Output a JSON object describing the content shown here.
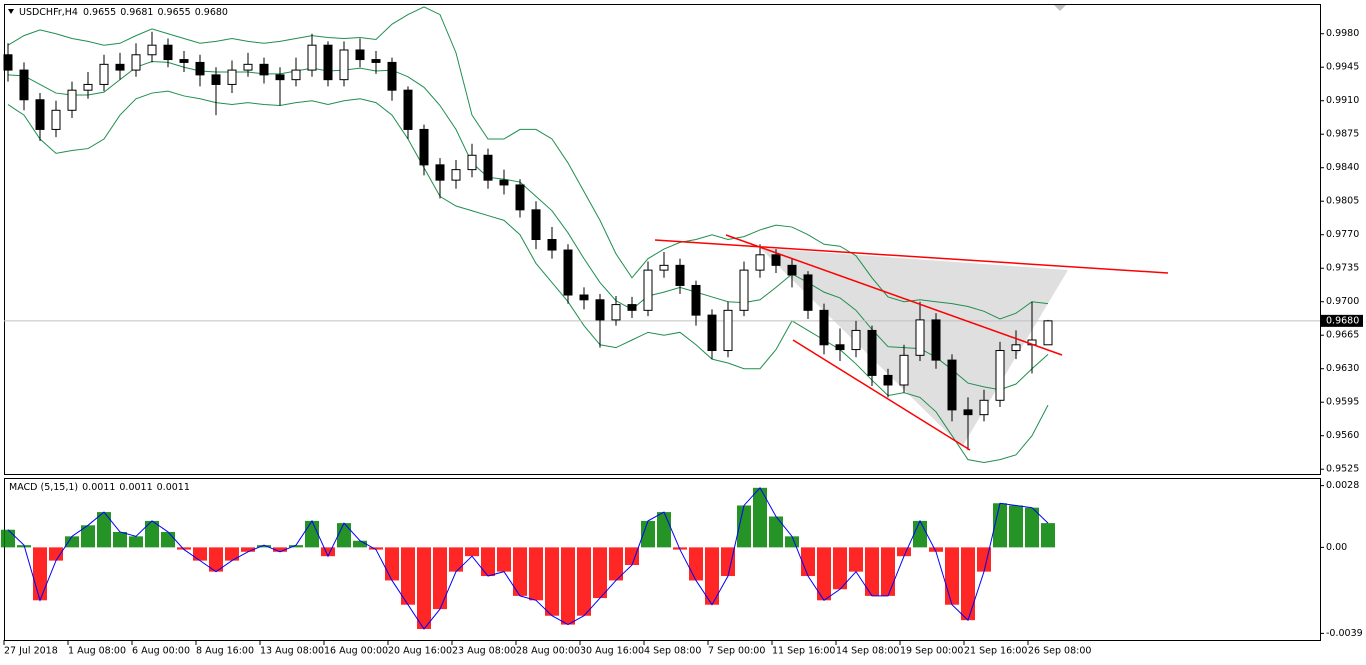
{
  "chart_data": [
    {
      "type": "candlestick",
      "title": "USDCHFr,H4",
      "header_values": [
        0.9655,
        0.9681,
        0.9655,
        0.968
      ],
      "header_value_labels": [
        "0.9655",
        "0.9681",
        "0.9655",
        "0.9680"
      ],
      "categories": [
        "27 Jul 2018",
        null,
        null,
        null,
        "1 Aug 08:00",
        null,
        null,
        null,
        "6 Aug 00:00",
        null,
        null,
        null,
        "8 Aug 16:00",
        null,
        null,
        null,
        "13 Aug 08:00",
        null,
        null,
        null,
        "16 Aug 00:00",
        null,
        null,
        null,
        "20 Aug 16:00",
        null,
        null,
        null,
        "23 Aug 08:00",
        null,
        null,
        null,
        "28 Aug 00:00",
        null,
        null,
        null,
        "30 Aug 16:00",
        null,
        null,
        null,
        "4 Sep 08:00",
        null,
        null,
        null,
        "7 Sep 00:00",
        null,
        null,
        null,
        "11 Sep 16:00",
        null,
        null,
        null,
        "14 Sep 08:00",
        null,
        null,
        null,
        "19 Sep 00:00",
        null,
        null,
        null,
        "21 Sep 16:00",
        null,
        null,
        null,
        "26 Sep 08:00",
        null
      ],
      "open": [
        0.9958,
        0.9942,
        0.9911,
        0.988,
        0.99,
        0.9921,
        0.9927,
        0.9948,
        0.9942,
        0.9958,
        0.9968,
        0.9953,
        0.995,
        0.9937,
        0.9927,
        0.9942,
        0.9948,
        0.9937,
        0.9932,
        0.9942,
        0.9968,
        0.9932,
        0.9963,
        0.9953,
        0.995,
        0.9921,
        0.988,
        0.9843,
        0.9827,
        0.9838,
        0.9853,
        0.9827,
        0.9822,
        0.9796,
        0.9765,
        0.9754,
        0.9707,
        0.9702,
        0.9681,
        0.9697,
        0.9691,
        0.9733,
        0.9738,
        0.9717,
        0.9686,
        0.9649,
        0.9691,
        0.9733,
        0.9749,
        0.9738,
        0.9728,
        0.9691,
        0.9655,
        0.965,
        0.967,
        0.9623,
        0.9613,
        0.9644,
        0.9681,
        0.9639,
        0.9587,
        0.9582,
        0.9597,
        0.9649,
        0.9655,
        0.9655
      ],
      "high": [
        0.997,
        0.995,
        0.9918,
        0.991,
        0.993,
        0.994,
        0.9958,
        0.996,
        0.997,
        0.9982,
        0.9975,
        0.9962,
        0.9958,
        0.9945,
        0.9952,
        0.996,
        0.9955,
        0.9945,
        0.9955,
        0.998,
        0.9972,
        0.9972,
        0.9975,
        0.9962,
        0.9955,
        0.9925,
        0.9885,
        0.985,
        0.9848,
        0.9865,
        0.986,
        0.9838,
        0.9828,
        0.9805,
        0.9778,
        0.976,
        0.9715,
        0.9708,
        0.9706,
        0.9705,
        0.9742,
        0.9752,
        0.9745,
        0.9722,
        0.9692,
        0.97,
        0.9742,
        0.976,
        0.9755,
        0.9745,
        0.9732,
        0.9698,
        0.9672,
        0.968,
        0.9675,
        0.963,
        0.9655,
        0.97,
        0.9688,
        0.9645,
        0.96,
        0.9608,
        0.9658,
        0.967,
        0.97,
        0.9681
      ],
      "low": [
        0.993,
        0.99,
        0.9868,
        0.9872,
        0.9892,
        0.9912,
        0.992,
        0.9932,
        0.9935,
        0.995,
        0.9945,
        0.994,
        0.9925,
        0.9895,
        0.9918,
        0.9935,
        0.9928,
        0.9905,
        0.9925,
        0.9935,
        0.9925,
        0.9925,
        0.9945,
        0.9938,
        0.991,
        0.987,
        0.9832,
        0.9808,
        0.9818,
        0.983,
        0.9818,
        0.9812,
        0.9788,
        0.9755,
        0.9745,
        0.9698,
        0.9692,
        0.9652,
        0.9675,
        0.9683,
        0.9685,
        0.9725,
        0.9708,
        0.9675,
        0.964,
        0.9642,
        0.9685,
        0.9725,
        0.973,
        0.9715,
        0.9682,
        0.9645,
        0.9638,
        0.9642,
        0.9612,
        0.96,
        0.9605,
        0.9638,
        0.963,
        0.9575,
        0.9545,
        0.9575,
        0.959,
        0.964,
        0.9625,
        0.9655
      ],
      "close": [
        0.9942,
        0.9911,
        0.988,
        0.99,
        0.9921,
        0.9927,
        0.9948,
        0.9942,
        0.9958,
        0.9968,
        0.9953,
        0.995,
        0.9937,
        0.9927,
        0.9942,
        0.9948,
        0.9937,
        0.9932,
        0.9942,
        0.9968,
        0.9932,
        0.9963,
        0.9953,
        0.995,
        0.9921,
        0.988,
        0.9843,
        0.9827,
        0.9838,
        0.9853,
        0.9827,
        0.9822,
        0.9796,
        0.9765,
        0.9754,
        0.9707,
        0.9702,
        0.9681,
        0.9697,
        0.9691,
        0.9733,
        0.9738,
        0.9717,
        0.9686,
        0.9649,
        0.9691,
        0.9733,
        0.9749,
        0.9738,
        0.9728,
        0.9691,
        0.9655,
        0.965,
        0.967,
        0.9623,
        0.9613,
        0.9644,
        0.9681,
        0.9639,
        0.9587,
        0.9582,
        0.9597,
        0.9649,
        0.9655,
        0.966,
        0.968
      ],
      "up_color": "#ffffff",
      "down_color": "#000000",
      "outline_color": "#000000",
      "series": [
        {
          "color": "#1f8f4e",
          "values": [
            0.9968,
            0.9978,
            0.9984,
            0.998,
            0.9975,
            0.9972,
            0.9968,
            0.997,
            0.9978,
            0.9985,
            0.998,
            0.9975,
            0.997,
            0.9972,
            0.9975,
            0.9972,
            0.997,
            0.9972,
            0.9975,
            0.9978,
            0.9976,
            0.9975,
            0.9976,
            0.9974,
            0.999,
            1.0,
            1.0008,
            1.0,
            0.996,
            0.9895,
            0.987,
            0.987,
            0.988,
            0.988,
            0.987,
            0.9845,
            0.9815,
            0.9785,
            0.975,
            0.9725,
            0.9745,
            0.9755,
            0.9762,
            0.9765,
            0.977,
            0.9765,
            0.9768,
            0.9775,
            0.978,
            0.9778,
            0.977,
            0.976,
            0.9758,
            0.9748,
            0.9725,
            0.9705,
            0.97,
            0.9702,
            0.97,
            0.9698,
            0.9695,
            0.969,
            0.9682,
            0.9688,
            0.97,
            0.9698
          ]
        },
        {
          "color": "#1f8f4e",
          "values": [
            0.9937,
            0.9936,
            0.9927,
            0.9918,
            0.9916,
            0.9916,
            0.9919,
            0.9932,
            0.9945,
            0.9951,
            0.995,
            0.9945,
            0.9941,
            0.994,
            0.994,
            0.994,
            0.9938,
            0.9938,
            0.9941,
            0.9944,
            0.9941,
            0.9942,
            0.9944,
            0.9941,
            0.9942,
            0.9935,
            0.9924,
            0.9905,
            0.988,
            0.9845,
            0.983,
            0.9828,
            0.9825,
            0.981,
            0.9795,
            0.9772,
            0.9745,
            0.972,
            0.9701,
            0.9692,
            0.9706,
            0.971,
            0.9715,
            0.971,
            0.9705,
            0.97,
            0.9699,
            0.9702,
            0.9715,
            0.9729,
            0.972,
            0.971,
            0.9704,
            0.9691,
            0.9671,
            0.9653,
            0.9652,
            0.9651,
            0.9642,
            0.9629,
            0.9615,
            0.9611,
            0.9608,
            0.9614,
            0.963,
            0.9645
          ]
        },
        {
          "color": "#1f8f4e",
          "values": [
            0.9906,
            0.9895,
            0.987,
            0.9855,
            0.9858,
            0.986,
            0.987,
            0.9895,
            0.9912,
            0.9918,
            0.992,
            0.9915,
            0.9912,
            0.9908,
            0.9906,
            0.9908,
            0.9906,
            0.9905,
            0.9908,
            0.991,
            0.9906,
            0.991,
            0.9912,
            0.9908,
            0.9895,
            0.987,
            0.984,
            0.981,
            0.98,
            0.9795,
            0.979,
            0.9785,
            0.977,
            0.974,
            0.972,
            0.97,
            0.9675,
            0.9655,
            0.9652,
            0.966,
            0.9668,
            0.9665,
            0.9668,
            0.9655,
            0.964,
            0.9636,
            0.963,
            0.963,
            0.965,
            0.968,
            0.967,
            0.966,
            0.965,
            0.9635,
            0.9618,
            0.9602,
            0.9605,
            0.96,
            0.9585,
            0.956,
            0.9535,
            0.9532,
            0.9535,
            0.954,
            0.956,
            0.9592
          ]
        }
      ],
      "ylim": [
        0.952,
        1.001
      ],
      "yticks": [
        {
          "value": 0.998,
          "label": "0.9980"
        },
        0.9945,
        {
          "value": 0.991,
          "label": "0.9910"
        },
        0.9875,
        {
          "value": 0.984,
          "label": "0.9840"
        },
        0.9805,
        {
          "value": 0.977,
          "label": "0.9770"
        },
        0.9735,
        {
          "value": 0.97,
          "label": "0.9700"
        },
        0.9665,
        {
          "value": 0.963,
          "label": "0.9630"
        },
        0.9595,
        {
          "value": 0.956,
          "label": "0.9560"
        },
        0.9525
      ],
      "current_price": {
        "value": 0.968,
        "label": "0.9680"
      },
      "grid": false
    },
    {
      "type": "macd",
      "title": "MACD (5,15,1)",
      "title_values": [
        0.0011,
        0.0011,
        0.0011
      ],
      "histogram": {
        "up_color": "#008000",
        "down_color": "#ff0000",
        "values": [
          0.0008,
          0.0001,
          -0.0024,
          -0.0006,
          0.0005,
          0.001,
          0.0016,
          0.0007,
          0.0005,
          0.0012,
          0.0007,
          -0.0001,
          -0.0006,
          -0.0011,
          -0.0006,
          -0.0002,
          0.0001,
          -0.0002,
          0.0001,
          0.0012,
          -0.0004,
          0.0011,
          0.0003,
          -0.0001,
          -0.0015,
          -0.0026,
          -0.0037,
          -0.0028,
          -0.0011,
          -0.0004,
          -0.0013,
          -0.0011,
          -0.0022,
          -0.0024,
          -0.0031,
          -0.0035,
          -0.0031,
          -0.0023,
          -0.0015,
          -0.0008,
          0.0012,
          0.0016,
          -0.0001,
          -0.0015,
          -0.0026,
          -0.0013,
          0.0019,
          0.0027,
          0.0014,
          0.0005,
          -0.0013,
          -0.0024,
          -0.0019,
          -0.0011,
          -0.0022,
          -0.0022,
          -0.0004,
          0.0012,
          -0.0002,
          -0.0026,
          -0.0033,
          -0.0011,
          0.002,
          0.0019,
          0.0018,
          0.0011
        ]
      },
      "signal": {
        "color": "#0000ff",
        "values": [
          0.0008,
          0.0001,
          -0.0024,
          -0.0006,
          0.0005,
          0.001,
          0.0016,
          0.0007,
          0.0005,
          0.0012,
          0.0007,
          -0.0001,
          -0.0006,
          -0.0011,
          -0.0006,
          -0.0002,
          0.0001,
          -0.0002,
          0.0001,
          0.0012,
          -0.0004,
          0.0011,
          0.0003,
          -0.0001,
          -0.0015,
          -0.0026,
          -0.0037,
          -0.0028,
          -0.0011,
          -0.0004,
          -0.0013,
          -0.0011,
          -0.0022,
          -0.0024,
          -0.0031,
          -0.0035,
          -0.0031,
          -0.0023,
          -0.0015,
          -0.0008,
          0.0012,
          0.0016,
          -0.0001,
          -0.0015,
          -0.0026,
          -0.0013,
          0.0019,
          0.0027,
          0.0014,
          0.0005,
          -0.0013,
          -0.0024,
          -0.0019,
          -0.0011,
          -0.0022,
          -0.0022,
          -0.0004,
          0.0012,
          -0.0002,
          -0.0026,
          -0.0033,
          -0.0011,
          0.002,
          0.0019,
          0.0018,
          0.0011
        ]
      },
      "ylim": [
        -0.0042,
        0.0031
      ],
      "yticks": [
        0.0028,
        {
          "value": 0,
          "label": "0.00"
        },
        -0.0039
      ]
    }
  ]
}
